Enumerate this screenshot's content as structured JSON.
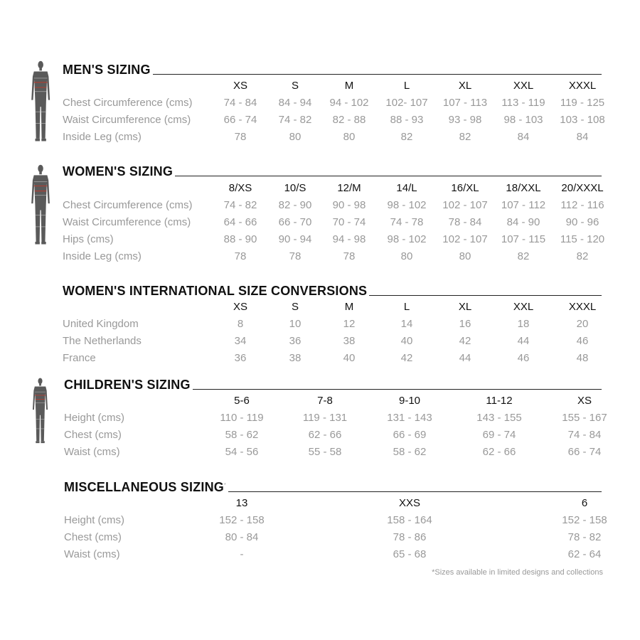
{
  "sections": [
    {
      "title": "MEN'S SIZING",
      "figure": "male-figure-icon",
      "columns": [
        "XS",
        "S",
        "M",
        "L",
        "XL",
        "XXL",
        "XXXL"
      ],
      "rows": [
        {
          "label": "Chest Circumference (cms)",
          "values": [
            "74 - 84",
            "84 - 94",
            "94 - 102",
            "102- 107",
            "107 - 113",
            "113 - 119",
            "119 - 125"
          ]
        },
        {
          "label": "Waist Circumference (cms)",
          "values": [
            "66 - 74",
            "74 - 82",
            "82 - 88",
            "88 - 93",
            "93 - 98",
            "98 - 103",
            "103 - 108"
          ]
        },
        {
          "label": "Inside Leg (cms)",
          "values": [
            "78",
            "80",
            "80",
            "82",
            "82",
            "84",
            "84"
          ]
        }
      ]
    },
    {
      "title": "WOMEN'S SIZING",
      "figure": "female-figure-icon",
      "columns": [
        "8/XS",
        "10/S",
        "12/M",
        "14/L",
        "16/XL",
        "18/XXL",
        "20/XXXL"
      ],
      "rows": [
        {
          "label": "Chest Circumference (cms)",
          "values": [
            "74 - 82",
            "82 - 90",
            "90 - 98",
            "98 - 102",
            "102 - 107",
            "107 - 112",
            "112 - 116"
          ]
        },
        {
          "label": "Waist Circumference (cms)",
          "values": [
            "64 - 66",
            "66 - 70",
            "70 - 74",
            "74 - 78",
            "78 - 84",
            "84 - 90",
            "90 - 96"
          ]
        },
        {
          "label": "Hips (cms)",
          "values": [
            "88 - 90",
            "90 - 94",
            "94 - 98",
            "98 - 102",
            "102 - 107",
            "107 - 115",
            "115 - 120"
          ]
        },
        {
          "label": "Inside Leg (cms)",
          "values": [
            "78",
            "78",
            "78",
            "80",
            "80",
            "82",
            "82"
          ]
        }
      ]
    },
    {
      "title": "WOMEN'S INTERNATIONAL SIZE CONVERSIONS",
      "columns": [
        "XS",
        "S",
        "M",
        "L",
        "XL",
        "XXL",
        "XXXL"
      ],
      "rows": [
        {
          "label": "United Kingdom",
          "values": [
            "8",
            "10",
            "12",
            "14",
            "16",
            "18",
            "20"
          ]
        },
        {
          "label": "The Netherlands",
          "values": [
            "34",
            "36",
            "38",
            "40",
            "42",
            "44",
            "46"
          ]
        },
        {
          "label": "France",
          "values": [
            "36",
            "38",
            "40",
            "42",
            "44",
            "46",
            "48"
          ]
        }
      ]
    },
    {
      "title": "CHILDREN'S SIZING",
      "figure": "child-figure-icon",
      "columns": [
        "5-6",
        "7-8",
        "9-10",
        "11-12",
        "XS"
      ],
      "rows": [
        {
          "label": "Height (cms)",
          "values": [
            "110 - 119",
            "119 - 131",
            "131 - 143",
            "143 - 155",
            "155 - 167"
          ]
        },
        {
          "label": "Chest (cms)",
          "values": [
            "58 - 62",
            "62 - 66",
            "66 - 69",
            "69 - 74",
            "74 - 84"
          ]
        },
        {
          "label": "Waist (cms)",
          "values": [
            "54 - 56",
            "55 - 58",
            "58 - 62",
            "62 - 66",
            "66 - 74"
          ]
        }
      ]
    },
    {
      "title": "MISCELLANEOUS SIZING",
      "title_mark": "*",
      "columns": [
        "13",
        "XXS",
        "6"
      ],
      "rows": [
        {
          "label": "Height (cms)",
          "values": [
            "152 - 158",
            "158 - 164",
            "152 - 158"
          ]
        },
        {
          "label": "Chest (cms)",
          "values": [
            "80 - 84",
            "78 - 86",
            "78 - 82"
          ]
        },
        {
          "label": "Waist (cms)",
          "values": [
            "-",
            "65 - 68",
            "62 - 64"
          ]
        }
      ]
    }
  ],
  "footnote": "*Sizes available in limited designs and collections",
  "colors": {
    "heading": "#111111",
    "text": "#999999",
    "figure": "#5a5a5a",
    "figure_accent": "#c0392b"
  }
}
